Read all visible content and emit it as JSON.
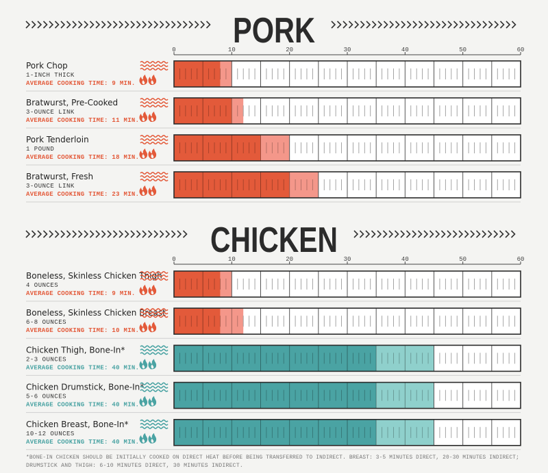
{
  "colors": {
    "direct_dark": "#e35a3a",
    "direct_light": "#f4978a",
    "indirect_dark": "#4aa3a3",
    "indirect_light": "#8fd0cc",
    "ink": "#2b2b2b"
  },
  "footnote": {
    "line1": "*BONE-IN CHICKEN SHOULD BE INITIALLY COOKED ON DIRECT HEAT BEFORE BEING TRANSFERRED TO INDIRECT. BREAST: 3-5 MINUTES DIRECT, 20-30 MINUTES INDIRECT;",
    "line2": "DRUMSTICK AND THIGH: 6-10 MINUTES DIRECT, 30 MINUTES INDIRECT."
  },
  "chart_data": [
    {
      "type": "bar",
      "title": "PORK",
      "xlim": [
        0,
        60
      ],
      "ticks": [
        0,
        10,
        20,
        30,
        40,
        50,
        60
      ],
      "items": [
        {
          "name": "Pork Chop",
          "portion": "1-INCH THICK",
          "time_label": "AVERAGE COOKING TIME: 9 MIN.",
          "heat": "direct",
          "min": 8,
          "max": 10
        },
        {
          "name": "Bratwurst, Pre-Cooked",
          "portion": "3-OUNCE LINK",
          "time_label": "AVERAGE COOKING TIME: 11 MIN.",
          "heat": "direct",
          "min": 10,
          "max": 12
        },
        {
          "name": "Pork Tenderloin",
          "portion": "1 POUND",
          "time_label": "AVERAGE COOKING TIME: 18 MIN.",
          "heat": "direct",
          "min": 15,
          "max": 20
        },
        {
          "name": "Bratwurst, Fresh",
          "portion": "3-OUNCE LINK",
          "time_label": "AVERAGE COOKING TIME: 23 MIN.",
          "heat": "direct",
          "min": 20,
          "max": 25
        }
      ]
    },
    {
      "type": "bar",
      "title": "CHICKEN",
      "xlim": [
        0,
        60
      ],
      "ticks": [
        0,
        10,
        20,
        30,
        40,
        50,
        60
      ],
      "items": [
        {
          "name": "Boneless, Skinless Chicken Thigh",
          "portion": "4 OUNCES",
          "time_label": "AVERAGE COOKING TIME: 9 MIN.",
          "heat": "direct",
          "min": 8,
          "max": 10
        },
        {
          "name": "Boneless, Skinless Chicken Breast",
          "portion": "6-8 OUNCES",
          "time_label": "AVERAGE COOKING TIME: 10 MIN.",
          "heat": "direct",
          "min": 8,
          "max": 12
        },
        {
          "name": "Chicken Thigh, Bone-In*",
          "portion": "2-3 OUNCES",
          "time_label": "AVERAGE COOKING TIME: 40 MIN.",
          "heat": "indirect",
          "min": 35,
          "max": 45
        },
        {
          "name": "Chicken Drumstick, Bone-In*",
          "portion": "5-6 OUNCES",
          "time_label": "AVERAGE COOKING TIME: 40 MIN.",
          "heat": "indirect",
          "min": 35,
          "max": 45
        },
        {
          "name": "Chicken Breast, Bone-In*",
          "portion": "10-12 OUNCES",
          "time_label": "AVERAGE COOKING TIME: 40 MIN.",
          "heat": "indirect",
          "min": 35,
          "max": 45
        }
      ]
    }
  ]
}
